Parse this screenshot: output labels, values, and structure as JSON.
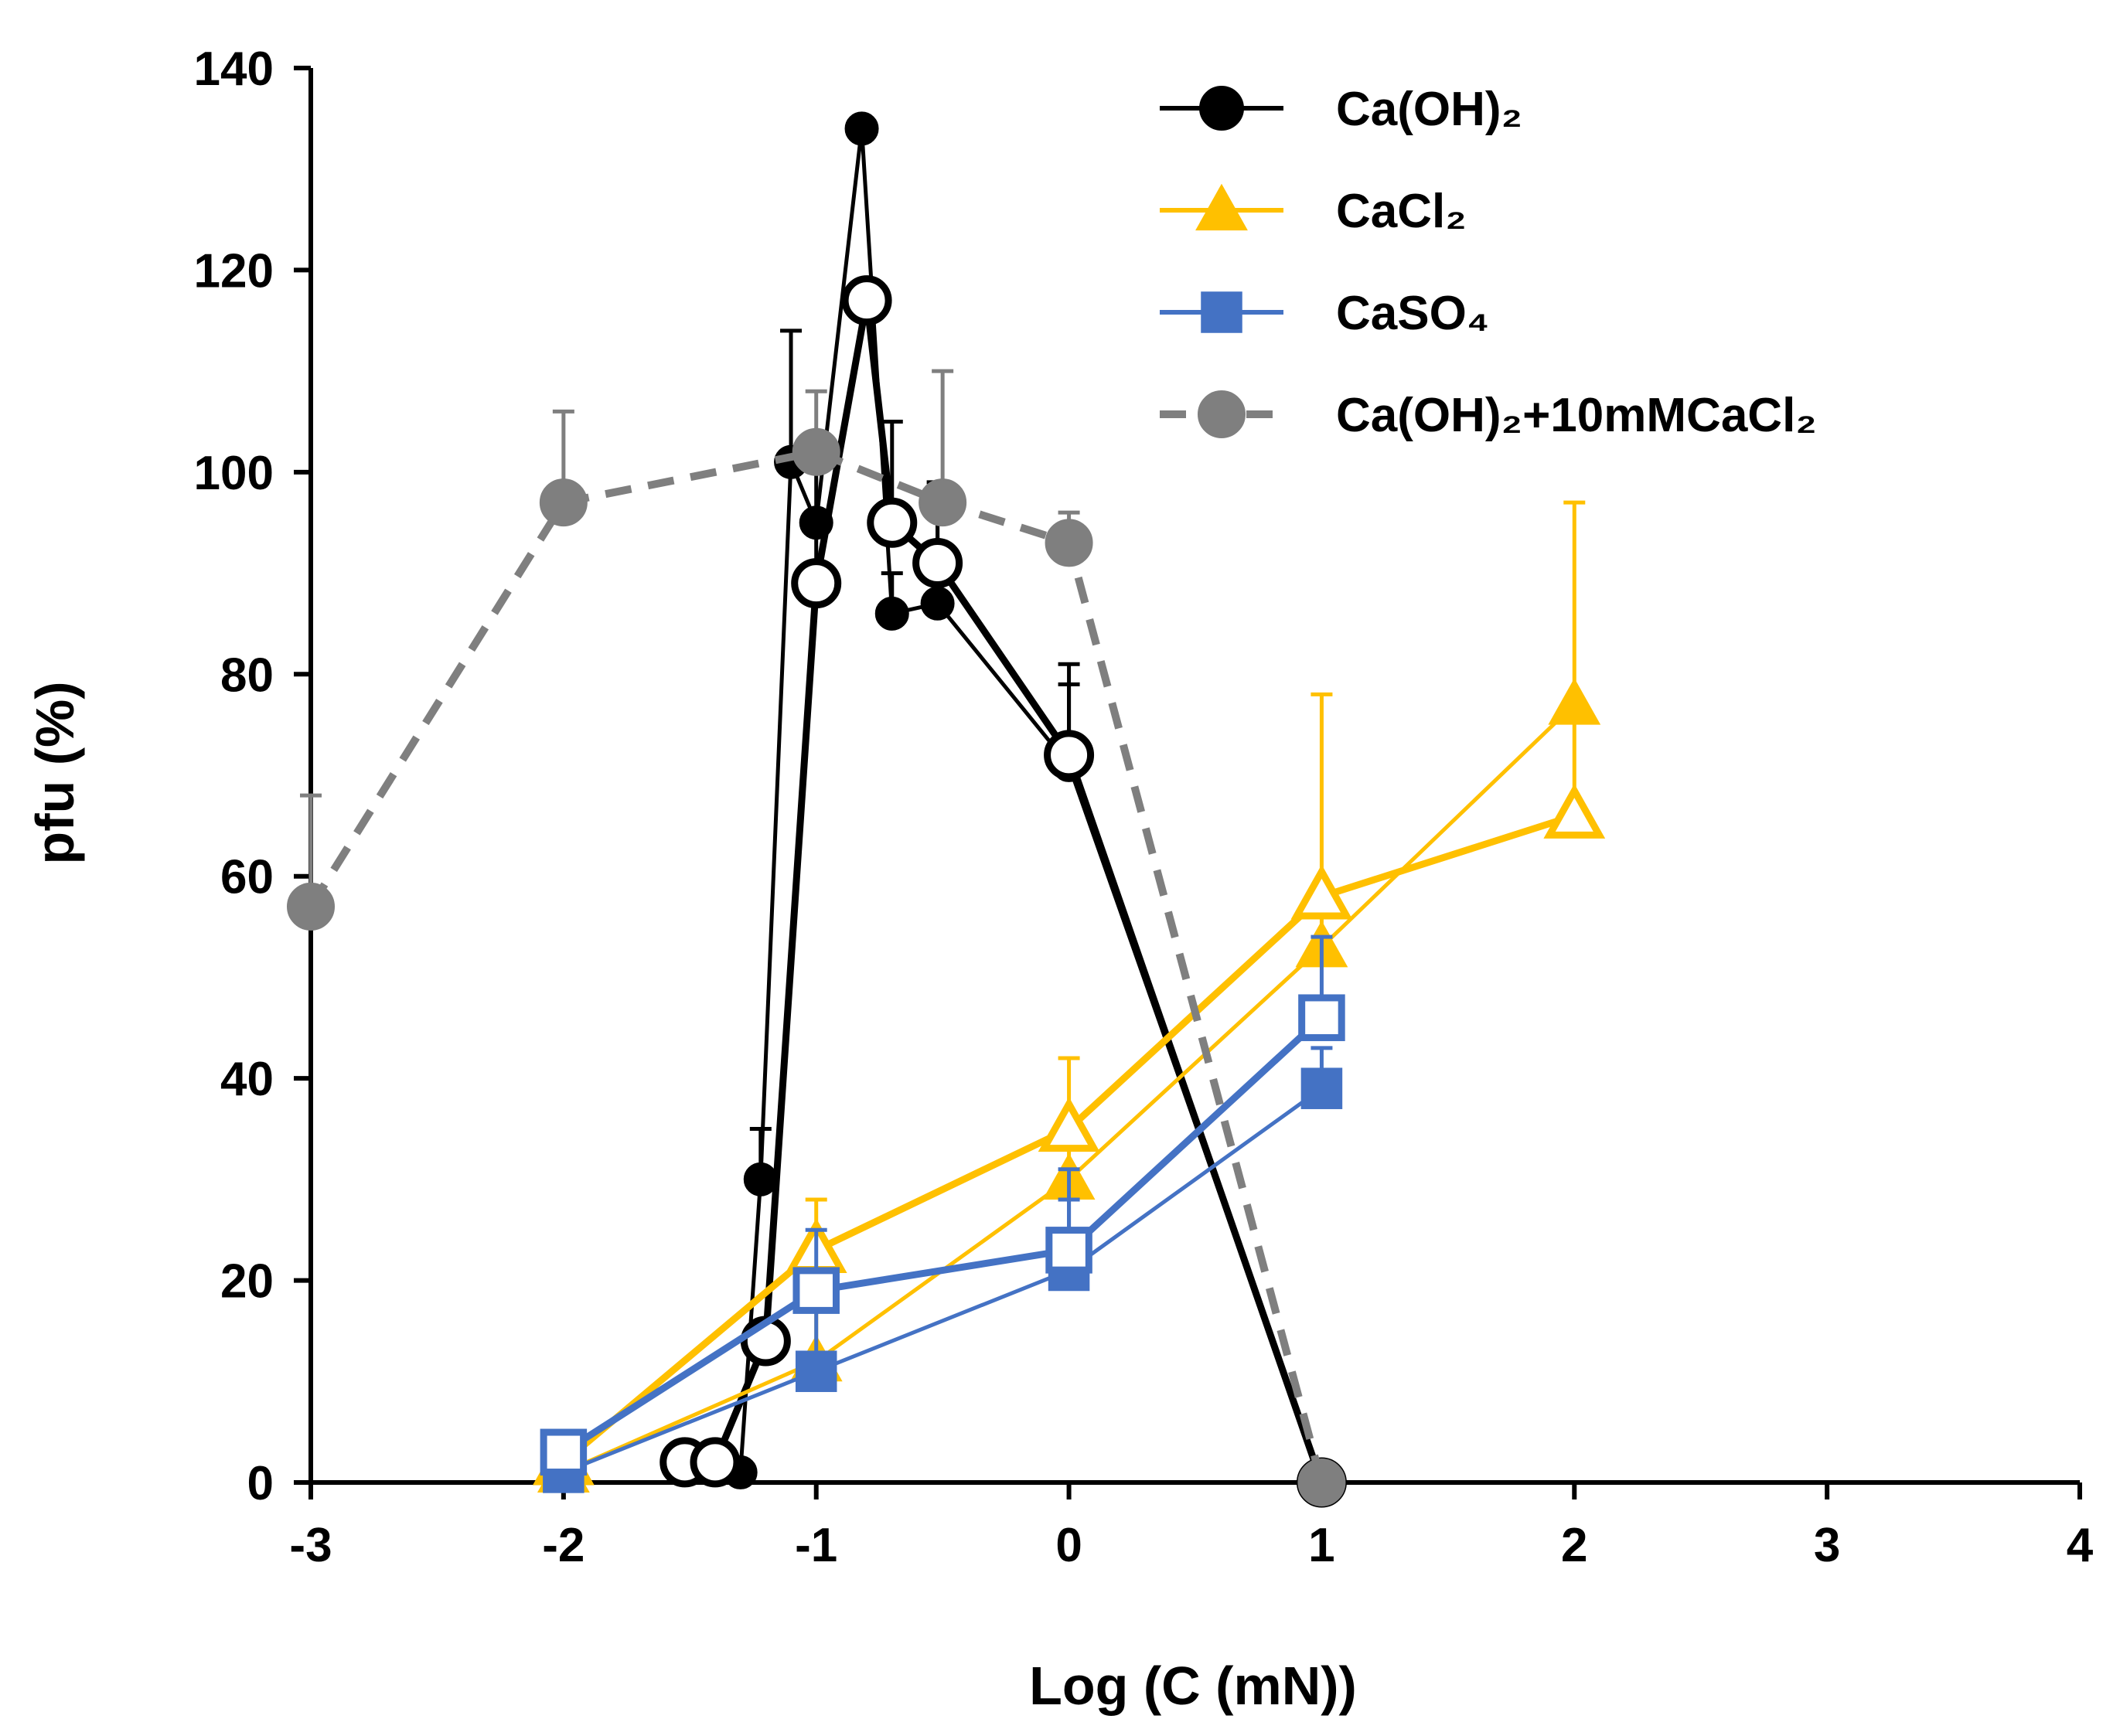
{
  "chart_data": {
    "type": "line",
    "xlabel": "Log (C (mN))",
    "ylabel": "pfu (%)",
    "xlim": [
      -3,
      4
    ],
    "ylim": [
      0,
      140
    ],
    "xticks": [
      "-3",
      "-2",
      "-1",
      "0",
      "1",
      "2",
      "3",
      "4"
    ],
    "yticks": [
      "0",
      "20",
      "40",
      "60",
      "80",
      "100",
      "120",
      "140"
    ],
    "legend_position": "top-right",
    "series": [
      {
        "id": "caoh2-filled",
        "name": "Ca(OH)₂",
        "in_legend": true,
        "color": "#000000",
        "marker": "circle",
        "filled": true,
        "dashed": false,
        "line": "thin",
        "x": [
          -1.5,
          -1.3,
          -1.22,
          -1.1,
          -1.0,
          -0.82,
          -0.7,
          -0.52,
          0,
          1
        ],
        "y": [
          2,
          1,
          30,
          101,
          95,
          134,
          86,
          87,
          71,
          0
        ],
        "err": [
          0,
          0,
          5,
          13,
          8,
          0,
          4,
          10,
          10,
          0
        ]
      },
      {
        "id": "caoh2-open",
        "name": "Ca(OH)₂ (open)",
        "in_legend": false,
        "color": "#000000",
        "marker": "circle",
        "filled": false,
        "dashed": false,
        "line": "thick",
        "x": [
          -1.52,
          -1.4,
          -1.2,
          -1.0,
          -0.8,
          -0.7,
          -0.52,
          0,
          1
        ],
        "y": [
          2,
          2,
          14,
          89,
          117,
          95,
          91,
          72,
          0
        ],
        "err": [
          0,
          0,
          0,
          6,
          0,
          10,
          8,
          7,
          0
        ]
      },
      {
        "id": "cacl2-filled",
        "name": "CaCl₂",
        "in_legend": true,
        "color": "#FFC000",
        "marker": "triangle",
        "filled": true,
        "dashed": false,
        "line": "thin",
        "x": [
          -2,
          -1,
          0,
          1,
          2
        ],
        "y": [
          1,
          12,
          30,
          53,
          77
        ],
        "err": [
          0,
          5,
          5,
          4,
          20
        ]
      },
      {
        "id": "cacl2-open",
        "name": "CaCl₂ (open)",
        "in_legend": false,
        "color": "#FFC000",
        "marker": "triangle",
        "filled": false,
        "dashed": false,
        "line": "thick",
        "x": [
          -2,
          -1,
          0,
          1,
          2
        ],
        "y": [
          2,
          23,
          35,
          58,
          66
        ],
        "err": [
          0,
          5,
          7,
          20,
          10
        ]
      },
      {
        "id": "caso4-filled",
        "name": "CaSO₄",
        "in_legend": true,
        "color": "#4472C4",
        "marker": "square",
        "filled": true,
        "dashed": false,
        "line": "thin",
        "x": [
          -2,
          -1,
          0,
          1
        ],
        "y": [
          1,
          11,
          21,
          39
        ],
        "err": [
          0,
          10,
          7,
          4
        ]
      },
      {
        "id": "caso4-open",
        "name": "CaSO₄ (open)",
        "in_legend": false,
        "color": "#4472C4",
        "marker": "square",
        "filled": false,
        "dashed": false,
        "line": "thick",
        "x": [
          -2,
          -1,
          0,
          1
        ],
        "y": [
          3,
          19,
          23,
          46
        ],
        "err": [
          0,
          6,
          8,
          8
        ]
      },
      {
        "id": "caoh2-cacl2",
        "name": "Ca(OH)₂+10mMCaCl₂",
        "in_legend": true,
        "color": "#7F7F7F",
        "marker": "circle",
        "filled": true,
        "dashed": true,
        "line": "thick",
        "x": [
          -3,
          -2,
          -1,
          -0.5,
          0,
          1
        ],
        "y": [
          57,
          97,
          102,
          97,
          93,
          0
        ],
        "err": [
          11,
          9,
          6,
          13,
          3,
          0
        ]
      }
    ]
  }
}
